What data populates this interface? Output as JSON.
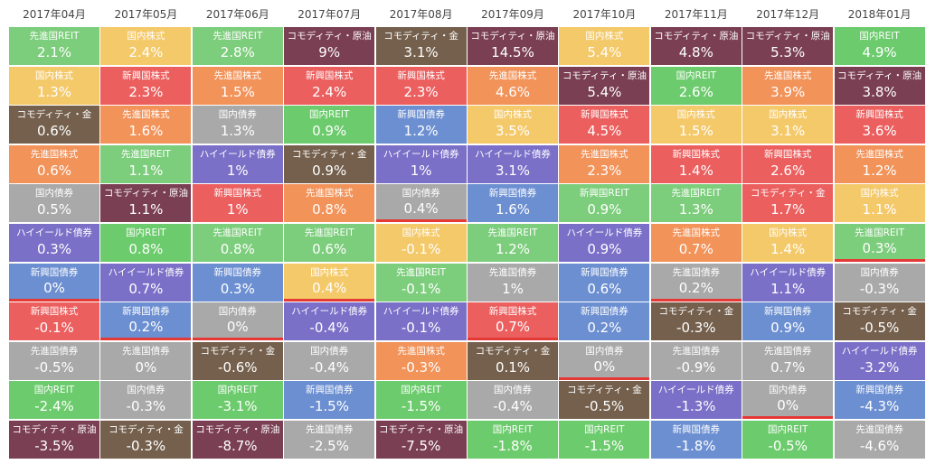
{
  "chart_data": {
    "type": "heatmap",
    "periods": [
      "2017年04月",
      "2017年05月",
      "2017年06月",
      "2017年07月",
      "2017年08月",
      "2017年09月",
      "2017年10月",
      "2017年11月",
      "2017年12月",
      "2018年01月"
    ],
    "columns": [
      [
        [
          "先進国REIT",
          "2.1%"
        ],
        [
          "国内株式",
          "1.3%"
        ],
        [
          "コモディティ・金",
          "0.6%"
        ],
        [
          "先進国株式",
          "0.6%"
        ],
        [
          "国内債券",
          "0.5%"
        ],
        [
          "ハイイールド債券",
          "0.3%"
        ],
        [
          "新興国債券",
          "0%"
        ],
        [
          "新興国株式",
          "-0.1%"
        ],
        [
          "先進国債券",
          "-0.5%"
        ],
        [
          "国内REIT",
          "-2.4%"
        ],
        [
          "コモディティ・原油",
          "-3.5%"
        ]
      ],
      [
        [
          "国内株式",
          "2.4%"
        ],
        [
          "新興国株式",
          "2.3%"
        ],
        [
          "先進国株式",
          "1.6%"
        ],
        [
          "先進国REIT",
          "1.1%"
        ],
        [
          "コモディティ・原油",
          "1.1%"
        ],
        [
          "国内REIT",
          "0.8%"
        ],
        [
          "ハイイールド債券",
          "0.7%"
        ],
        [
          "新興国債券",
          "0.2%"
        ],
        [
          "先進国債券",
          "0%"
        ],
        [
          "国内債券",
          "-0.3%"
        ],
        [
          "コモディティ・金",
          "-0.3%"
        ]
      ],
      [
        [
          "先進国REIT",
          "2.8%"
        ],
        [
          "先進国株式",
          "1.5%"
        ],
        [
          "国内債券",
          "1.3%"
        ],
        [
          "ハイイールド債券",
          "1%"
        ],
        [
          "新興国株式",
          "1%"
        ],
        [
          "先進国REIT",
          "0.8%"
        ],
        [
          "新興国債券",
          "0.3%"
        ],
        [
          "国内債券",
          "0%"
        ],
        [
          "コモディティ・金",
          "-0.6%"
        ],
        [
          "国内REIT",
          "-3.1%"
        ],
        [
          "コモディティ・原油",
          "-8.7%"
        ]
      ],
      [
        [
          "コモディティ・原油",
          "9%"
        ],
        [
          "新興国株式",
          "2.4%"
        ],
        [
          "国内REIT",
          "0.9%"
        ],
        [
          "コモディティ・金",
          "0.9%"
        ],
        [
          "先進国株式",
          "0.8%"
        ],
        [
          "先進国REIT",
          "0.6%"
        ],
        [
          "国内株式",
          "0.4%"
        ],
        [
          "ハイイールド債券",
          "-0.4%"
        ],
        [
          "国内債券",
          "-0.4%"
        ],
        [
          "新興国債券",
          "-1.5%"
        ],
        [
          "先進国債券",
          "-2.5%"
        ]
      ],
      [
        [
          "コモディティ・金",
          "3.1%"
        ],
        [
          "新興国株式",
          "2.3%"
        ],
        [
          "新興国債券",
          "1.2%"
        ],
        [
          "ハイイールド債券",
          "1%"
        ],
        [
          "国内債券",
          "0.4%"
        ],
        [
          "国内株式",
          "-0.1%"
        ],
        [
          "先進国REIT",
          "-0.1%"
        ],
        [
          "ハイイールド債券",
          "-0.1%"
        ],
        [
          "先進国株式",
          "-0.3%"
        ],
        [
          "国内REIT",
          "-1.5%"
        ],
        [
          "コモディティ・原油",
          "-7.5%"
        ]
      ],
      [
        [
          "コモディティ・原油",
          "14.5%"
        ],
        [
          "先進国株式",
          "4.6%"
        ],
        [
          "国内株式",
          "3.5%"
        ],
        [
          "ハイイールド債券",
          "3.1%"
        ],
        [
          "新興国債券",
          "1.6%"
        ],
        [
          "先進国REIT",
          "1.2%"
        ],
        [
          "先進国債券",
          "1%"
        ],
        [
          "新興国株式",
          "0.7%"
        ],
        [
          "コモディティ・金",
          "0.1%"
        ],
        [
          "国内債券",
          "-0.4%"
        ],
        [
          "国内REIT",
          "-1.8%"
        ]
      ],
      [
        [
          "国内株式",
          "5.4%"
        ],
        [
          "コモディティ・原油",
          "5.4%"
        ],
        [
          "新興国株式",
          "4.5%"
        ],
        [
          "先進国株式",
          "2.3%"
        ],
        [
          "新興国REIT",
          "0.9%"
        ],
        [
          "ハイイールド債券",
          "0.9%"
        ],
        [
          "新興国債券",
          "0.6%"
        ],
        [
          "新興国債券",
          "0.2%"
        ],
        [
          "国内債券",
          "0%"
        ],
        [
          "コモディティ・金",
          "-0.5%"
        ],
        [
          "国内REIT",
          "-1.5%"
        ]
      ],
      [
        [
          "コモディティ・原油",
          "4.8%"
        ],
        [
          "国内REIT",
          "2.6%"
        ],
        [
          "国内株式",
          "1.5%"
        ],
        [
          "新興国株式",
          "1.4%"
        ],
        [
          "先進国REIT",
          "1.3%"
        ],
        [
          "先進国株式",
          "0.7%"
        ],
        [
          "先進国債券",
          "0.2%"
        ],
        [
          "コモディティ・金",
          "-0.3%"
        ],
        [
          "先進国債券",
          "-0.9%"
        ],
        [
          "ハイイールド債券",
          "-1.3%"
        ],
        [
          "新興国債券",
          "-1.8%"
        ]
      ],
      [
        [
          "コモディティ・原油",
          "5.3%"
        ],
        [
          "先進国株式",
          "3.9%"
        ],
        [
          "国内株式",
          "3.1%"
        ],
        [
          "新興国株式",
          "2.6%"
        ],
        [
          "コモディティ・金",
          "1.7%"
        ],
        [
          "国内株式",
          "1.4%"
        ],
        [
          "ハイイールド債券",
          "1.1%"
        ],
        [
          "新興国債券",
          "0.9%"
        ],
        [
          "先進国債券",
          "0.7%"
        ],
        [
          "国内債券",
          "0%"
        ],
        [
          "国内REIT",
          "-0.5%"
        ]
      ],
      [
        [
          "国内REIT",
          "4.9%"
        ],
        [
          "コモディティ・原油",
          "3.8%"
        ],
        [
          "新興国株式",
          "3.6%"
        ],
        [
          "先進国株式",
          "1.2%"
        ],
        [
          "国内株式",
          "1.1%"
        ],
        [
          "先進国REIT",
          "0.3%"
        ],
        [
          "国内債券",
          "-0.3%"
        ],
        [
          "コモディティ・金",
          "-0.5%"
        ],
        [
          "ハイイールド債券",
          "-3.2%"
        ],
        [
          "新興国債券",
          "-4.3%"
        ],
        [
          "先進国債券",
          "-4.6%"
        ]
      ]
    ],
    "asset_colors": {
      "先進国REIT": "#7ccd7c",
      "国内REIT": "#6ccb6c",
      "新興国REIT": "#7ccd7c",
      "国内株式": "#f4c96a",
      "先進国株式": "#f2935a",
      "新興国株式": "#ec5f5f",
      "コモディティ・金": "#74604d",
      "コモディティ・原油": "#7a3f52",
      "国内債券": "#a9a9a9",
      "先進国債券": "#a9a9a9",
      "新興国債券": "#6c8fd1",
      "ハイイールド債券": "#7a70c8"
    },
    "cell_overrides": {
      "6-4": "#7ccd7c",
      "2-5": "#7ccd7c",
      "4-1": "#ec5f5f",
      "5-1": "#f2935a",
      "4-8": "#f2935a",
      "8-4": "#ec5f5f",
      "9-0": "#6ccb6c"
    },
    "dividers": [
      [
        0,
        6
      ],
      [
        1,
        7
      ],
      [
        2,
        7
      ],
      [
        3,
        6
      ],
      [
        4,
        4
      ],
      [
        5,
        7
      ],
      [
        6,
        8
      ],
      [
        7,
        6
      ],
      [
        8,
        9
      ],
      [
        9,
        5
      ]
    ],
    "divider_color": "#e53935"
  }
}
